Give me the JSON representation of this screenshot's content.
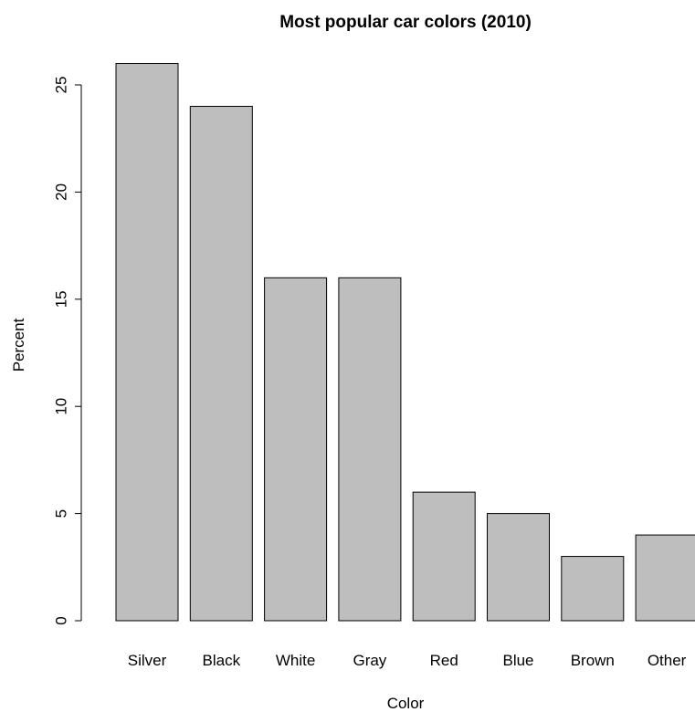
{
  "chart_data": {
    "type": "bar",
    "title": "Most popular car colors (2010)",
    "xlabel": "Color",
    "ylabel": "Percent",
    "categories": [
      "Silver",
      "Black",
      "White",
      "Gray",
      "Red",
      "Blue",
      "Brown",
      "Other"
    ],
    "values": [
      26,
      24,
      16,
      16,
      6,
      5,
      3,
      4
    ],
    "yticks": [
      "0",
      "5",
      "10",
      "15",
      "20",
      "25"
    ],
    "ylim": [
      0,
      26
    ],
    "grid": false,
    "legend": "none",
    "bar_color": "#bebebe",
    "bar_border_color": "#000000"
  }
}
